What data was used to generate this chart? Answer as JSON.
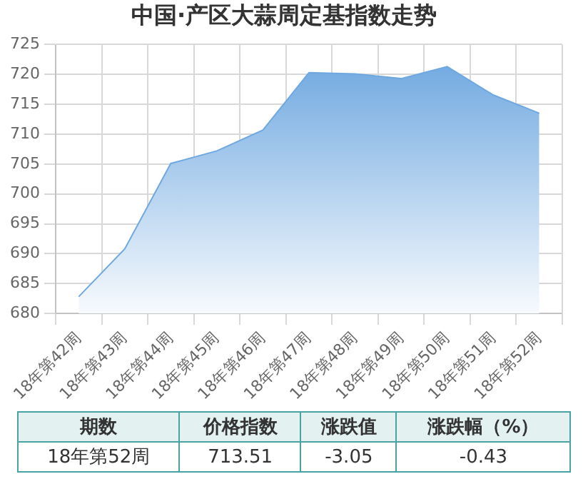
{
  "chart_data": {
    "type": "area",
    "title": "中国·产区大蒜周定基指数走势",
    "categories": [
      "18年第42周",
      "18年第43周",
      "18年第44周",
      "18年第45周",
      "18年第46周",
      "18年第47周",
      "18年第48周",
      "18年第49周",
      "18年第50周",
      "18年第51周",
      "18年第52周"
    ],
    "series": [
      {
        "color": "#6fa8e0",
        "values": [
          682.8,
          690.8,
          705.1,
          707.2,
          710.7,
          720.3,
          720.1,
          719.3,
          721.3,
          716.56,
          713.51
        ]
      }
    ],
    "ylim": [
      680,
      725
    ],
    "yticks": [
      680,
      685,
      690,
      695,
      700,
      705,
      710,
      715,
      720,
      725
    ],
    "grid": true,
    "annotations": [
      "期数",
      "价格指数",
      "涨跌值",
      "涨跌幅（%）",
      "18年第52周",
      "713.51",
      "-3.05",
      "-0.43"
    ]
  }
}
